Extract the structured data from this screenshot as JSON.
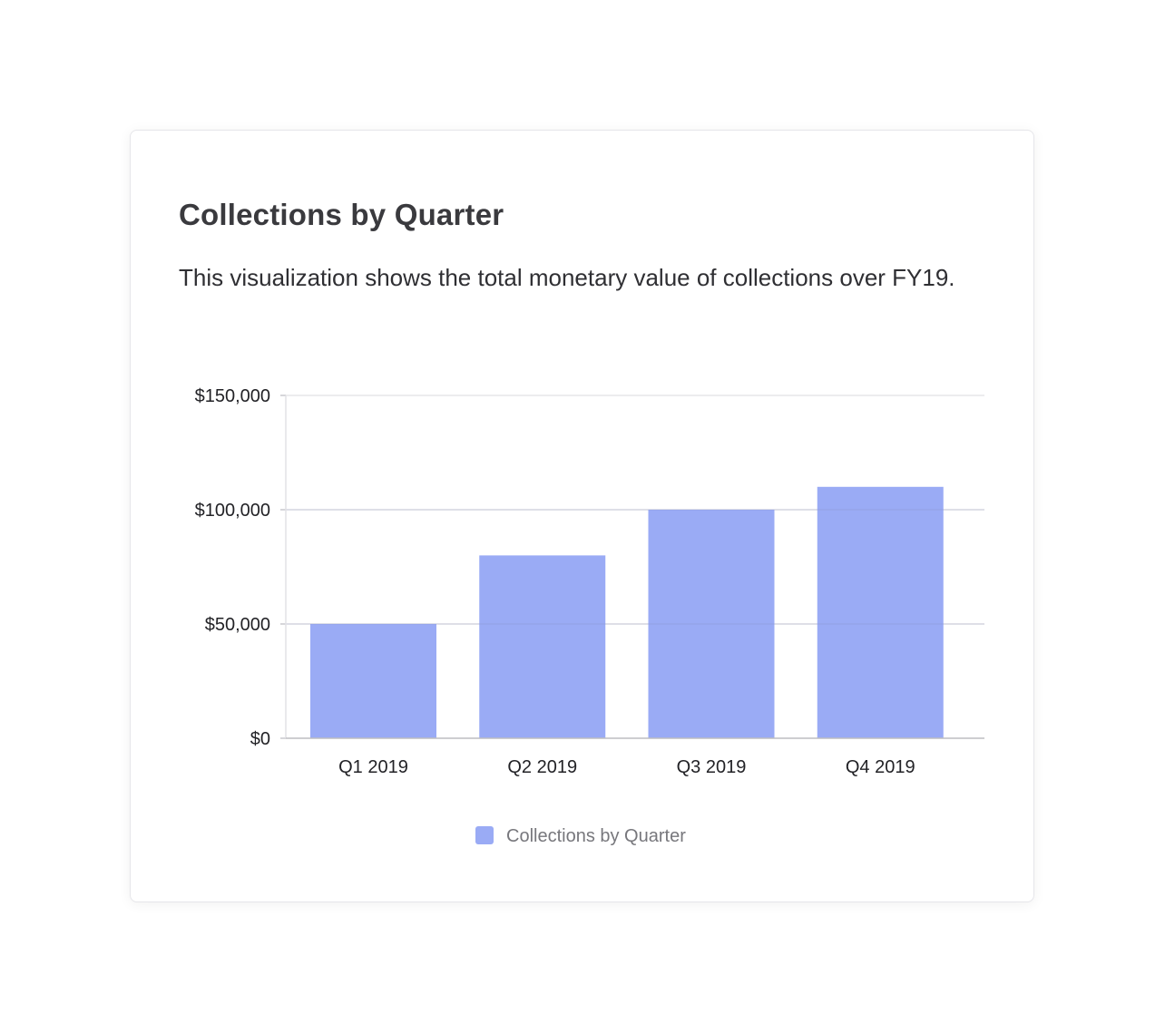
{
  "card": {
    "title": "Collections by Quarter",
    "description": "This visualization shows the total monetary value of collections over FY19."
  },
  "chart_data": {
    "type": "bar",
    "title": "Collections by Quarter",
    "categories": [
      "Q1 2019",
      "Q2 2019",
      "Q3 2019",
      "Q4 2019"
    ],
    "series": [
      {
        "name": "Collections by Quarter",
        "values": [
          50000,
          80000,
          100000,
          110000
        ],
        "color": "#9aabf5"
      }
    ],
    "ylim": [
      0,
      150000
    ],
    "yticks": [
      0,
      50000,
      100000,
      150000
    ],
    "ytick_labels": [
      "$0",
      "$50,000",
      "$100,000",
      "$150,000"
    ],
    "grid": true,
    "legend": "bottom-center"
  }
}
